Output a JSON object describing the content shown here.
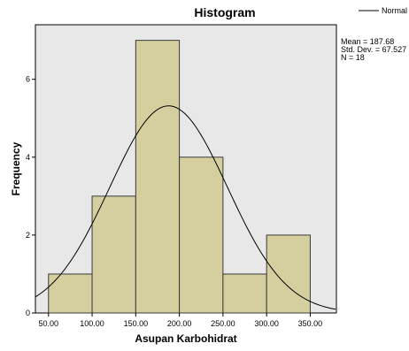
{
  "chart_data": {
    "type": "histogram",
    "title": "Histogram",
    "xlabel": "Asupan Karbohidrat",
    "ylabel": "Frequency",
    "x_ticks": [
      "50.00",
      "100.00",
      "150.00",
      "200.00",
      "250.00",
      "300.00",
      "350.00"
    ],
    "y_ticks": [
      "0",
      "2",
      "4",
      "6"
    ],
    "xlim": [
      35,
      380
    ],
    "ylim": [
      0,
      7.4
    ],
    "bins": [
      {
        "start": 50,
        "end": 100,
        "count": 1
      },
      {
        "start": 100,
        "end": 150,
        "count": 3
      },
      {
        "start": 150,
        "end": 200,
        "count": 7
      },
      {
        "start": 200,
        "end": 250,
        "count": 4
      },
      {
        "start": 250,
        "end": 300,
        "count": 1
      },
      {
        "start": 300,
        "end": 350,
        "count": 2
      }
    ],
    "normal_curve": {
      "mean": 187.68,
      "std_dev": 67.527,
      "n": 18,
      "bin_width": 50
    },
    "legend": {
      "label": "Normal",
      "position": "top-right"
    },
    "stats": [
      "Mean = 187.68",
      "Std. Dev. = 67.527",
      "N = 18"
    ],
    "colors": {
      "plot_bg": "#e8e8e8",
      "bar_fill": "#d5cfa0",
      "bar_stroke": "#3a3a3a",
      "curve": "#000000"
    }
  }
}
